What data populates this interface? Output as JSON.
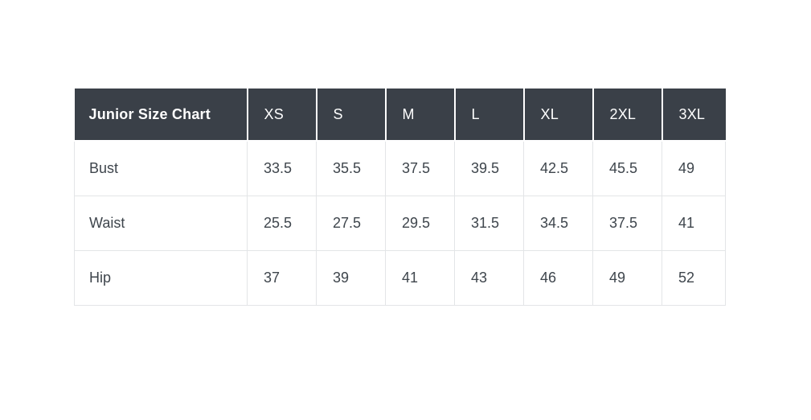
{
  "size_chart": {
    "title": "Junior Size Chart",
    "size_headers": [
      "XS",
      "S",
      "M",
      "L",
      "XL",
      "2XL",
      "3XL"
    ],
    "rows": [
      {
        "label": "Bust",
        "values": [
          "33.5",
          "35.5",
          "37.5",
          "39.5",
          "42.5",
          "45.5",
          "49"
        ]
      },
      {
        "label": "Waist",
        "values": [
          "25.5",
          "27.5",
          "29.5",
          "31.5",
          "34.5",
          "37.5",
          "41"
        ]
      },
      {
        "label": "Hip",
        "values": [
          "37",
          "39",
          "41",
          "43",
          "46",
          "49",
          "52"
        ]
      }
    ],
    "colors": {
      "page_bg": "#ffffff",
      "header_background": "#3a4048",
      "header_text": "#ffffff",
      "body_text": "#3e454c",
      "border": "#e3e5e7"
    }
  },
  "chart_data": {
    "type": "table",
    "title": "Junior Size Chart",
    "columns": [
      "Junior Size Chart",
      "XS",
      "S",
      "M",
      "L",
      "XL",
      "2XL",
      "3XL"
    ],
    "rows": [
      [
        "Bust",
        33.5,
        35.5,
        37.5,
        39.5,
        42.5,
        45.5,
        49
      ],
      [
        "Waist",
        25.5,
        27.5,
        29.5,
        31.5,
        34.5,
        37.5,
        41
      ],
      [
        "Hip",
        37,
        39,
        41,
        43,
        46,
        49,
        52
      ]
    ],
    "layout": {
      "header_row": true,
      "first_column_is_label": true,
      "grid": "on"
    }
  }
}
